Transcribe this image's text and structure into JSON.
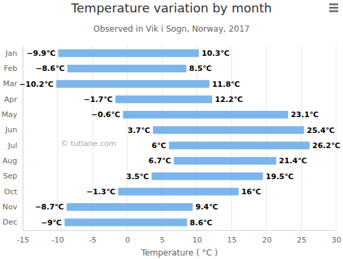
{
  "chart_data": {
    "type": "bar",
    "orientation": "horizontal",
    "title": "Temperature variation by month",
    "subtitle": "Observed in Vik i Sogn, Norway, 2017",
    "x_label": "Temperature ( °C )",
    "annotation": "© tutlane.com",
    "categories": [
      "Jan",
      "Feb",
      "Mar",
      "Apr",
      "May",
      "Jun",
      "Jul",
      "Aug",
      "Sep",
      "Oct",
      "Nov",
      "Dec"
    ],
    "values": [
      [
        -9.9,
        10.3
      ],
      [
        -8.6,
        8.5
      ],
      [
        -10.2,
        11.8
      ],
      [
        -1.7,
        12.2
      ],
      [
        -0.6,
        23.1
      ],
      [
        3.7,
        25.4
      ],
      [
        6,
        26.2
      ],
      [
        6.7,
        21.4
      ],
      [
        3.5,
        19.5
      ],
      [
        -1.3,
        16
      ],
      [
        -8.7,
        9.4
      ],
      [
        -9,
        8.6
      ]
    ],
    "value_labels": [
      [
        "−9.9℃",
        "10.3℃"
      ],
      [
        "−8.6℃",
        "8.5℃"
      ],
      [
        "−10.2℃",
        "11.8℃"
      ],
      [
        "−1.7℃",
        "12.2℃"
      ],
      [
        "−0.6℃",
        "23.1℃"
      ],
      [
        "3.7℃",
        "25.4℃"
      ],
      [
        "6℃",
        "26.2℃"
      ],
      [
        "6.7℃",
        "21.4℃"
      ],
      [
        "3.5℃",
        "19.5℃"
      ],
      [
        "−1.3℃",
        "16℃"
      ],
      [
        "−8.7℃",
        "9.4℃"
      ],
      [
        "−9℃",
        "8.6℃"
      ]
    ],
    "color": "#7cb5ec",
    "xlim": [
      -15,
      30
    ],
    "xticks": [
      -15,
      -10,
      -5,
      0,
      5,
      10,
      15,
      20,
      25,
      30
    ],
    "grid": true,
    "data_labels": true
  }
}
